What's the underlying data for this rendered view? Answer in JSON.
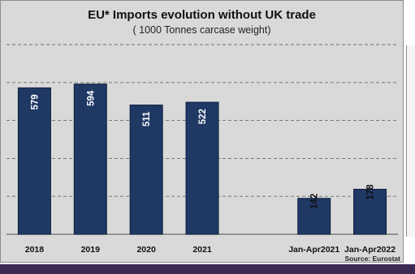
{
  "chart_data": {
    "type": "bar",
    "title": "EU* Imports evolution without UK trade",
    "subtitle": "( 1000 Tonnes carcase weight)",
    "categories": [
      "2018",
      "2019",
      "2020",
      "2021",
      "",
      "Jan-Apr2021",
      "Jan-Apr2022"
    ],
    "values": [
      579,
      594,
      511,
      522,
      null,
      142,
      178
    ],
    "data_labels": [
      "579",
      "594",
      "511",
      "522",
      "",
      "142",
      "178"
    ],
    "ylim": [
      0,
      750
    ],
    "grid": true,
    "legend": "none",
    "source": "Source: Eurostat",
    "colors": {
      "bar": "#1f3864",
      "bar_edge": "#0d1e3f",
      "plot_background": "#d9d9d9",
      "gridline": "#6b6b6b",
      "label_inside": "#ffffff",
      "label_outside": "#111111",
      "footer_band": "#3c2a52"
    }
  }
}
